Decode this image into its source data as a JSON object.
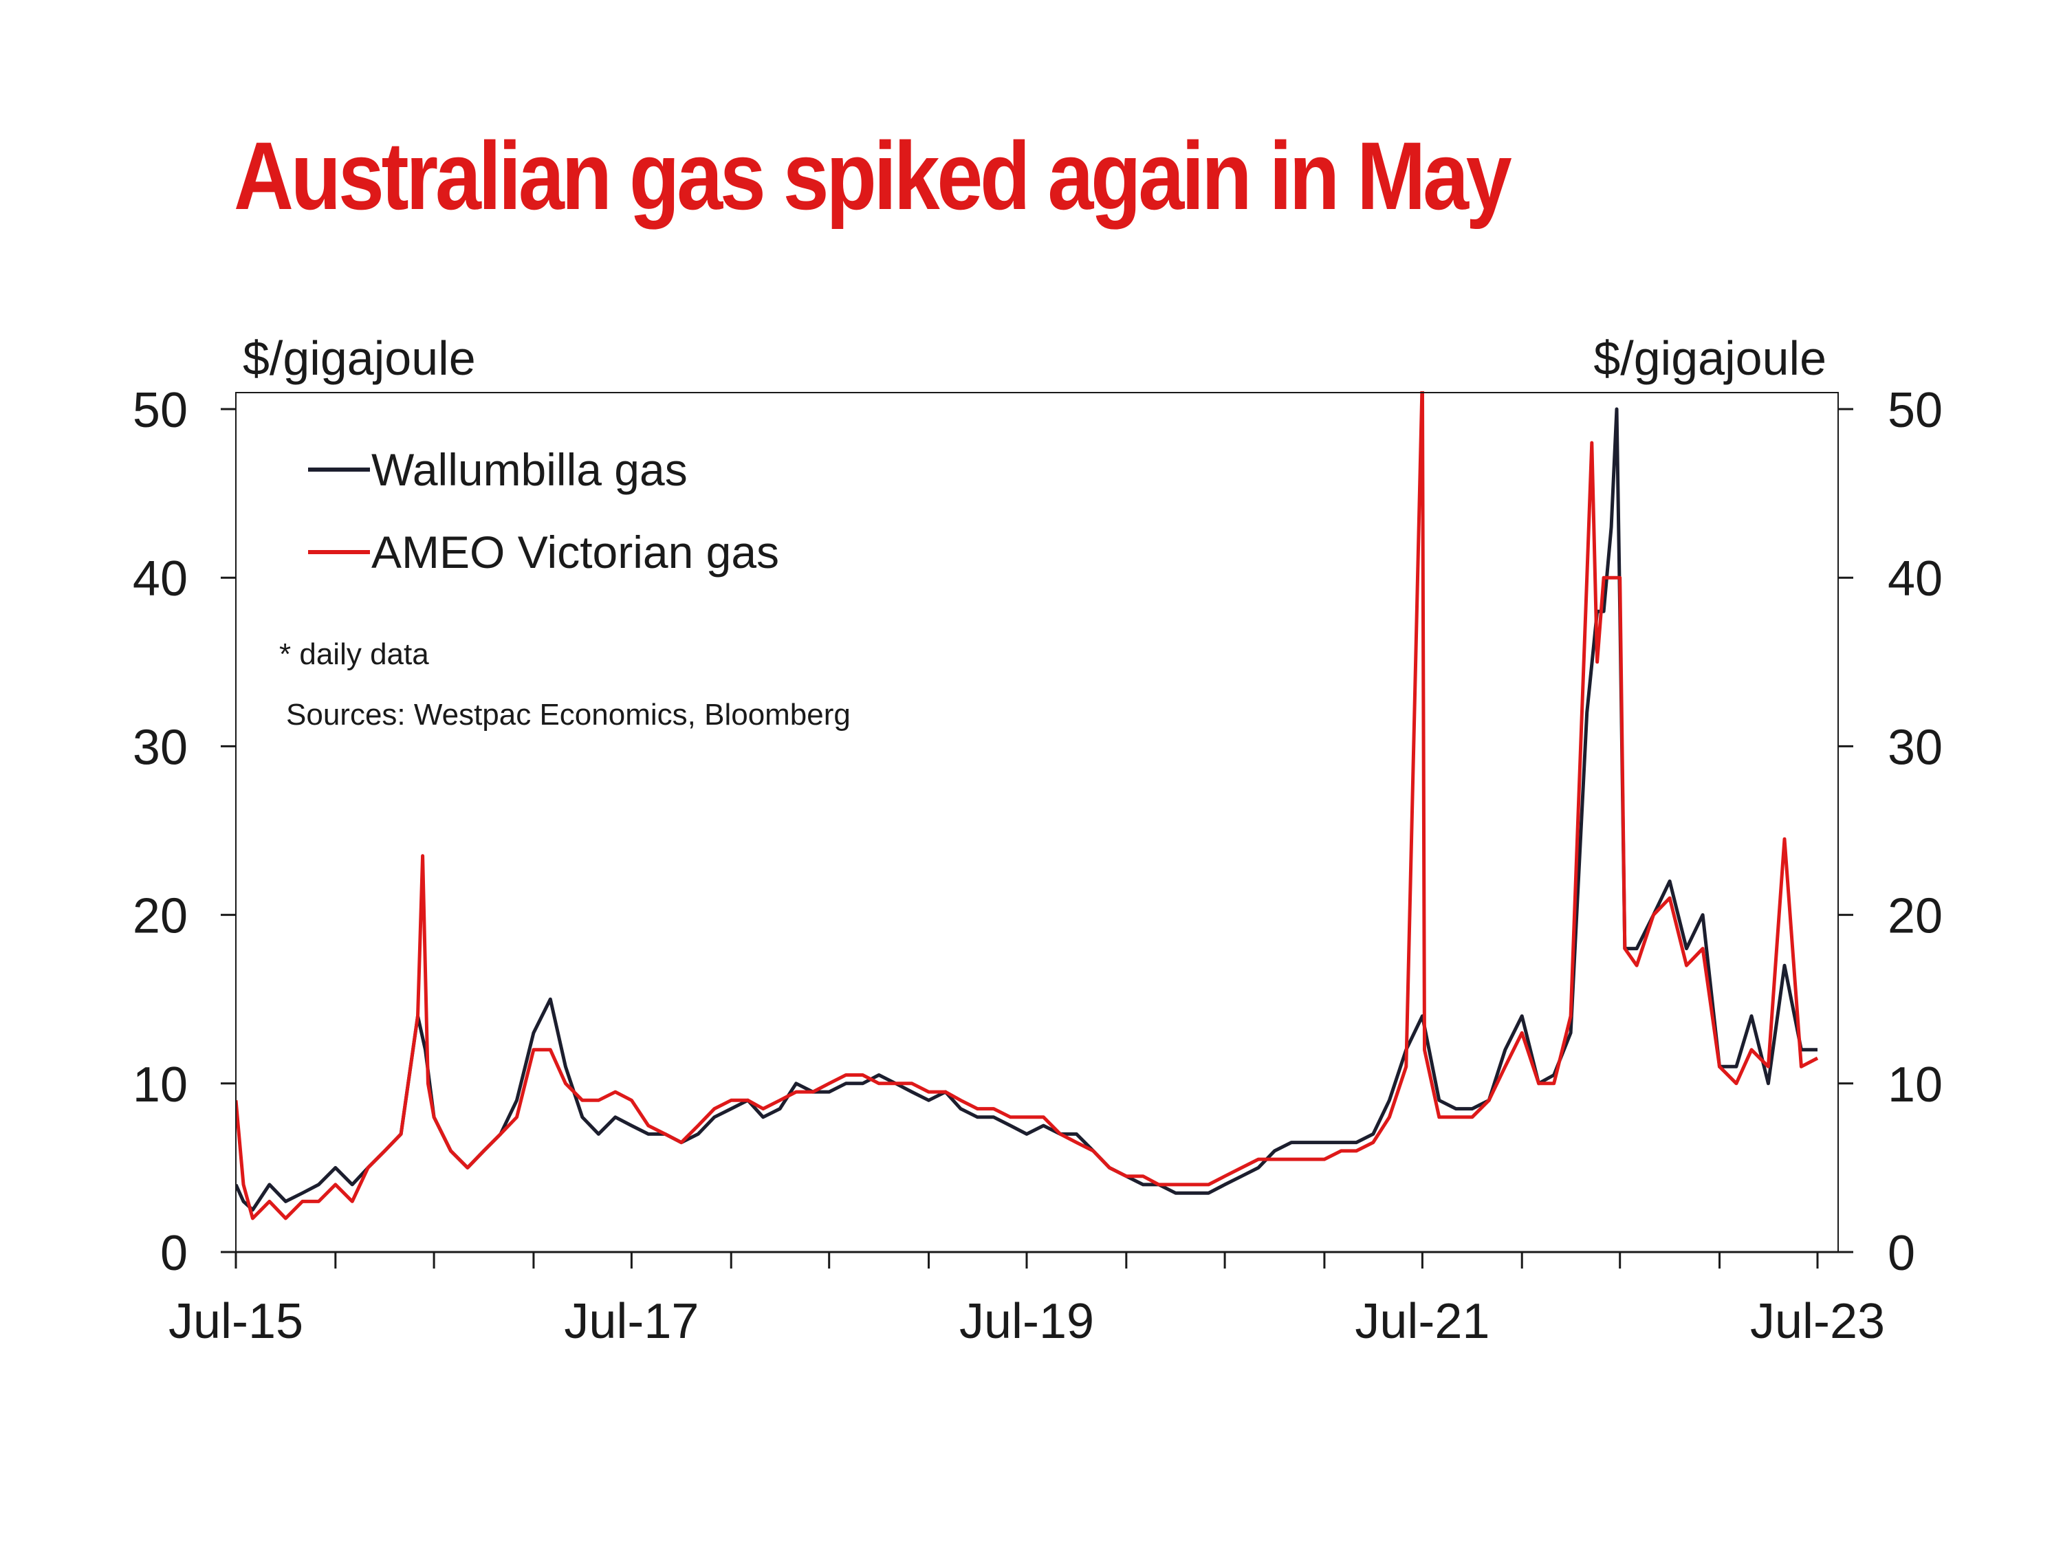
{
  "title": "Australian gas spiked again in May",
  "colors": {
    "title": "#de1919",
    "wallumbilla": "#1c1e2e",
    "ameo": "#de1919",
    "axis": "#1a1a1a"
  },
  "notes": {
    "frequency": "* daily data",
    "sources": "Sources: Westpac Economics, Bloomberg"
  },
  "chart_data": {
    "type": "line",
    "x_type": "date",
    "xlim": [
      "2015-07-01",
      "2023-07-01"
    ],
    "ylim": [
      0,
      50
    ],
    "y_ticks": [
      0,
      10,
      20,
      30,
      40,
      50
    ],
    "ylabel_left": "$/gigajoule",
    "ylabel_right": "$/gigajoule",
    "x_tick_labels": [
      {
        "date": "2015-07-01",
        "label": "Jul-15"
      },
      {
        "date": "2017-07-01",
        "label": "Jul-17"
      },
      {
        "date": "2019-07-01",
        "label": "Jul-19"
      },
      {
        "date": "2021-07-01",
        "label": "Jul-21"
      },
      {
        "date": "2023-07-01",
        "label": "Jul-23"
      }
    ],
    "grid": false,
    "legend_position": "top-left",
    "series": [
      {
        "name": "Wallumbilla gas",
        "points": [
          [
            "2015-07-01",
            4
          ],
          [
            "2015-07-15",
            3
          ],
          [
            "2015-08-01",
            2.5
          ],
          [
            "2015-09-01",
            4
          ],
          [
            "2015-10-01",
            3
          ],
          [
            "2015-11-01",
            3.5
          ],
          [
            "2015-12-01",
            4
          ],
          [
            "2016-01-01",
            5
          ],
          [
            "2016-02-01",
            4
          ],
          [
            "2016-03-01",
            5
          ],
          [
            "2016-04-01",
            6
          ],
          [
            "2016-05-01",
            7
          ],
          [
            "2016-06-01",
            14
          ],
          [
            "2016-06-15",
            12
          ],
          [
            "2016-07-01",
            8
          ],
          [
            "2016-08-01",
            6
          ],
          [
            "2016-09-01",
            5
          ],
          [
            "2016-10-01",
            6
          ],
          [
            "2016-11-01",
            7
          ],
          [
            "2016-12-01",
            9
          ],
          [
            "2017-01-01",
            13
          ],
          [
            "2017-02-01",
            15
          ],
          [
            "2017-03-01",
            11
          ],
          [
            "2017-04-01",
            8
          ],
          [
            "2017-05-01",
            7
          ],
          [
            "2017-06-01",
            8
          ],
          [
            "2017-07-01",
            7.5
          ],
          [
            "2017-08-01",
            7
          ],
          [
            "2017-09-01",
            7
          ],
          [
            "2017-10-01",
            6.5
          ],
          [
            "2017-11-01",
            7
          ],
          [
            "2017-12-01",
            8
          ],
          [
            "2018-01-01",
            8.5
          ],
          [
            "2018-02-01",
            9
          ],
          [
            "2018-03-01",
            8
          ],
          [
            "2018-04-01",
            8.5
          ],
          [
            "2018-05-01",
            10
          ],
          [
            "2018-06-01",
            9.5
          ],
          [
            "2018-07-01",
            9.5
          ],
          [
            "2018-08-01",
            10
          ],
          [
            "2018-09-01",
            10
          ],
          [
            "2018-10-01",
            10.5
          ],
          [
            "2018-11-01",
            10
          ],
          [
            "2018-12-01",
            9.5
          ],
          [
            "2019-01-01",
            9
          ],
          [
            "2019-02-01",
            9.5
          ],
          [
            "2019-03-01",
            8.5
          ],
          [
            "2019-04-01",
            8
          ],
          [
            "2019-05-01",
            8
          ],
          [
            "2019-06-01",
            7.5
          ],
          [
            "2019-07-01",
            7
          ],
          [
            "2019-08-01",
            7.5
          ],
          [
            "2019-09-01",
            7
          ],
          [
            "2019-10-01",
            7
          ],
          [
            "2019-11-01",
            6
          ],
          [
            "2019-12-01",
            5
          ],
          [
            "2020-01-01",
            4.5
          ],
          [
            "2020-02-01",
            4
          ],
          [
            "2020-03-01",
            4
          ],
          [
            "2020-04-01",
            3.5
          ],
          [
            "2020-05-01",
            3.5
          ],
          [
            "2020-06-01",
            3.5
          ],
          [
            "2020-07-01",
            4
          ],
          [
            "2020-08-01",
            4.5
          ],
          [
            "2020-09-01",
            5
          ],
          [
            "2020-10-01",
            6
          ],
          [
            "2020-11-01",
            6.5
          ],
          [
            "2020-12-01",
            6.5
          ],
          [
            "2021-01-01",
            6.5
          ],
          [
            "2021-02-01",
            6.5
          ],
          [
            "2021-03-01",
            6.5
          ],
          [
            "2021-04-01",
            7
          ],
          [
            "2021-05-01",
            9
          ],
          [
            "2021-06-01",
            12
          ],
          [
            "2021-07-01",
            14
          ],
          [
            "2021-08-01",
            9
          ],
          [
            "2021-09-01",
            8.5
          ],
          [
            "2021-10-01",
            8.5
          ],
          [
            "2021-11-01",
            9
          ],
          [
            "2021-12-01",
            12
          ],
          [
            "2022-01-01",
            14
          ],
          [
            "2022-02-01",
            10
          ],
          [
            "2022-03-01",
            10.5
          ],
          [
            "2022-04-01",
            13
          ],
          [
            "2022-05-01",
            32
          ],
          [
            "2022-05-20",
            38
          ],
          [
            "2022-06-01",
            38
          ],
          [
            "2022-06-15",
            43
          ],
          [
            "2022-06-25",
            50
          ],
          [
            "2022-07-01",
            38
          ],
          [
            "2022-07-10",
            18
          ],
          [
            "2022-08-01",
            18
          ],
          [
            "2022-09-01",
            20
          ],
          [
            "2022-10-01",
            22
          ],
          [
            "2022-11-01",
            18
          ],
          [
            "2022-12-01",
            20
          ],
          [
            "2023-01-01",
            11
          ],
          [
            "2023-02-01",
            11
          ],
          [
            "2023-03-01",
            14
          ],
          [
            "2023-04-01",
            10
          ],
          [
            "2023-05-01",
            17
          ],
          [
            "2023-06-01",
            12
          ],
          [
            "2023-07-01",
            12
          ]
        ]
      },
      {
        "name": "AMEO Victorian gas",
        "points": [
          [
            "2015-07-01",
            9
          ],
          [
            "2015-07-15",
            4
          ],
          [
            "2015-08-01",
            2
          ],
          [
            "2015-09-01",
            3
          ],
          [
            "2015-10-01",
            2
          ],
          [
            "2015-11-01",
            3
          ],
          [
            "2015-12-01",
            3
          ],
          [
            "2016-01-01",
            4
          ],
          [
            "2016-02-01",
            3
          ],
          [
            "2016-03-01",
            5
          ],
          [
            "2016-04-01",
            6
          ],
          [
            "2016-05-01",
            7
          ],
          [
            "2016-06-01",
            14
          ],
          [
            "2016-06-10",
            23.5
          ],
          [
            "2016-06-20",
            10
          ],
          [
            "2016-07-01",
            8
          ],
          [
            "2016-08-01",
            6
          ],
          [
            "2016-09-01",
            5
          ],
          [
            "2016-10-01",
            6
          ],
          [
            "2016-11-01",
            7
          ],
          [
            "2016-12-01",
            8
          ],
          [
            "2017-01-01",
            12
          ],
          [
            "2017-02-01",
            12
          ],
          [
            "2017-03-01",
            10
          ],
          [
            "2017-04-01",
            9
          ],
          [
            "2017-05-01",
            9
          ],
          [
            "2017-06-01",
            9.5
          ],
          [
            "2017-07-01",
            9
          ],
          [
            "2017-08-01",
            7.5
          ],
          [
            "2017-09-01",
            7
          ],
          [
            "2017-10-01",
            6.5
          ],
          [
            "2017-11-01",
            7.5
          ],
          [
            "2017-12-01",
            8.5
          ],
          [
            "2018-01-01",
            9
          ],
          [
            "2018-02-01",
            9
          ],
          [
            "2018-03-01",
            8.5
          ],
          [
            "2018-04-01",
            9
          ],
          [
            "2018-05-01",
            9.5
          ],
          [
            "2018-06-01",
            9.5
          ],
          [
            "2018-07-01",
            10
          ],
          [
            "2018-08-01",
            10.5
          ],
          [
            "2018-09-01",
            10.5
          ],
          [
            "2018-10-01",
            10
          ],
          [
            "2018-11-01",
            10
          ],
          [
            "2018-12-01",
            10
          ],
          [
            "2019-01-01",
            9.5
          ],
          [
            "2019-02-01",
            9.5
          ],
          [
            "2019-03-01",
            9
          ],
          [
            "2019-04-01",
            8.5
          ],
          [
            "2019-05-01",
            8.5
          ],
          [
            "2019-06-01",
            8
          ],
          [
            "2019-07-01",
            8
          ],
          [
            "2019-08-01",
            8
          ],
          [
            "2019-09-01",
            7
          ],
          [
            "2019-10-01",
            6.5
          ],
          [
            "2019-11-01",
            6
          ],
          [
            "2019-12-01",
            5
          ],
          [
            "2020-01-01",
            4.5
          ],
          [
            "2020-02-01",
            4.5
          ],
          [
            "2020-03-01",
            4
          ],
          [
            "2020-04-01",
            4
          ],
          [
            "2020-05-01",
            4
          ],
          [
            "2020-06-01",
            4
          ],
          [
            "2020-07-01",
            4.5
          ],
          [
            "2020-08-01",
            5
          ],
          [
            "2020-09-01",
            5.5
          ],
          [
            "2020-10-01",
            5.5
          ],
          [
            "2020-11-01",
            5.5
          ],
          [
            "2020-12-01",
            5.5
          ],
          [
            "2021-01-01",
            5.5
          ],
          [
            "2021-02-01",
            6
          ],
          [
            "2021-03-01",
            6
          ],
          [
            "2021-04-01",
            6.5
          ],
          [
            "2021-05-01",
            8
          ],
          [
            "2021-06-01",
            11
          ],
          [
            "2021-07-01",
            52
          ],
          [
            "2021-07-05",
            12
          ],
          [
            "2021-08-01",
            8
          ],
          [
            "2021-09-01",
            8
          ],
          [
            "2021-10-01",
            8
          ],
          [
            "2021-11-01",
            9
          ],
          [
            "2021-12-01",
            11
          ],
          [
            "2022-01-01",
            13
          ],
          [
            "2022-02-01",
            10
          ],
          [
            "2022-03-01",
            10
          ],
          [
            "2022-04-01",
            14
          ],
          [
            "2022-05-01",
            40
          ],
          [
            "2022-05-10",
            48
          ],
          [
            "2022-05-20",
            35
          ],
          [
            "2022-06-01",
            40
          ],
          [
            "2022-06-15",
            40
          ],
          [
            "2022-07-01",
            40
          ],
          [
            "2022-07-10",
            18
          ],
          [
            "2022-08-01",
            17
          ],
          [
            "2022-09-01",
            20
          ],
          [
            "2022-10-01",
            21
          ],
          [
            "2022-11-01",
            17
          ],
          [
            "2022-12-01",
            18
          ],
          [
            "2023-01-01",
            11
          ],
          [
            "2023-02-01",
            10
          ],
          [
            "2023-03-01",
            12
          ],
          [
            "2023-04-01",
            11
          ],
          [
            "2023-05-01",
            24.5
          ],
          [
            "2023-06-01",
            11
          ],
          [
            "2023-07-01",
            11.5
          ]
        ]
      }
    ]
  }
}
